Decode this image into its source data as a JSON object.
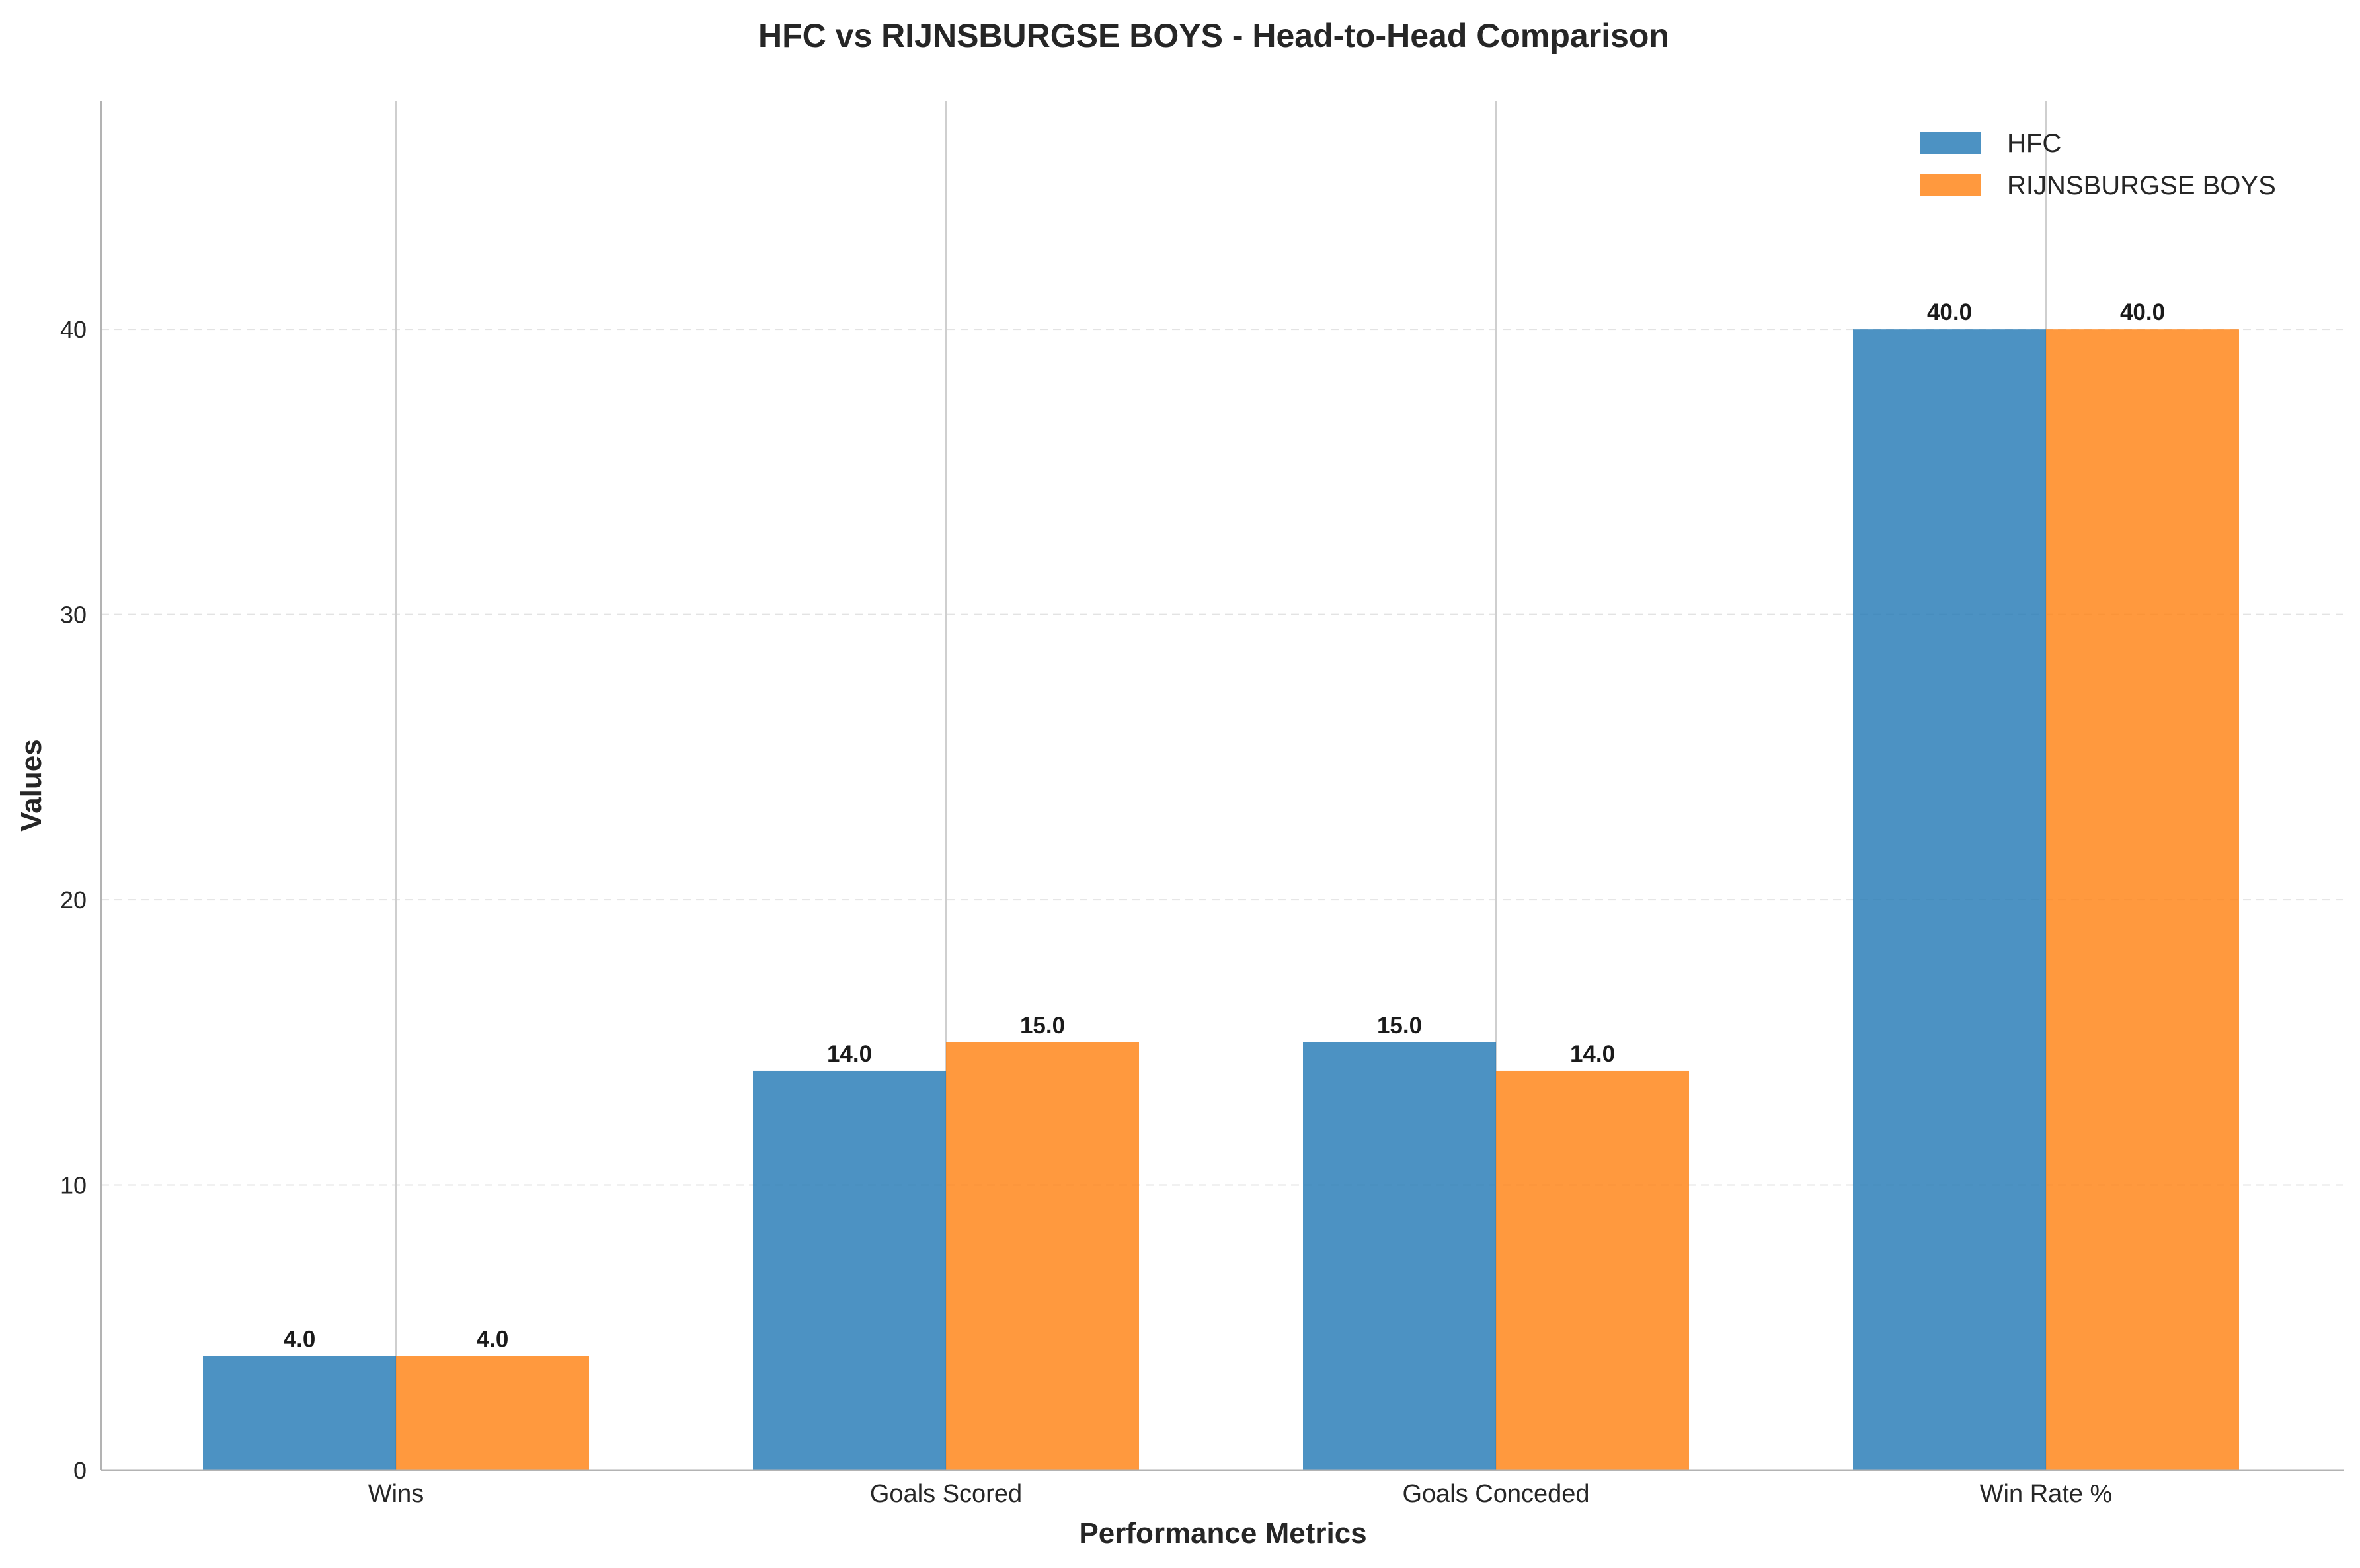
{
  "chart_data": {
    "type": "bar",
    "title": "HFC vs RIJNSBURGSE BOYS - Head-to-Head Comparison",
    "xlabel": "Performance Metrics",
    "ylabel": "Values",
    "categories": [
      "Wins",
      "Goals Scored",
      "Goals Conceded",
      "Win Rate %"
    ],
    "series": [
      {
        "name": "HFC",
        "values": [
          4.0,
          14.0,
          15.0,
          40.0
        ],
        "color": "#1f77b4"
      },
      {
        "name": "RIJNSBURGSE BOYS",
        "values": [
          4.0,
          15.0,
          14.0,
          40.0
        ],
        "color": "#ff7f0e"
      }
    ],
    "data_labels": [
      [
        "4.0",
        "14.0",
        "15.0",
        "40.0"
      ],
      [
        "4.0",
        "15.0",
        "14.0",
        "40.0"
      ]
    ],
    "yticks": [
      0,
      10,
      20,
      30,
      40
    ],
    "ylim": [
      0,
      48
    ],
    "grid": true,
    "legend_position": "top-right"
  }
}
